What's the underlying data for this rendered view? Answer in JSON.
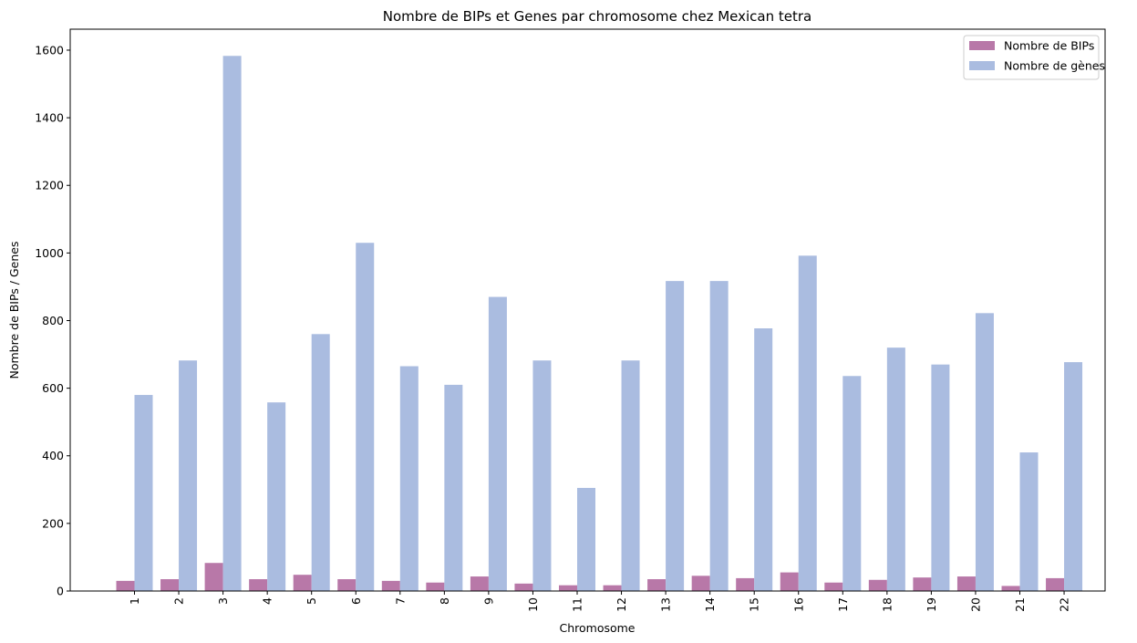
{
  "chart_data": {
    "type": "bar",
    "title": "Nombre de BIPs et Genes par chromosome chez Mexican tetra",
    "xlabel": "Chromosome",
    "ylabel": "Nombre de BIPs / Genes",
    "categories": [
      "1",
      "2",
      "3",
      "4",
      "5",
      "6",
      "7",
      "8",
      "9",
      "10",
      "11",
      "12",
      "13",
      "14",
      "15",
      "16",
      "17",
      "18",
      "19",
      "20",
      "21",
      "22"
    ],
    "series": [
      {
        "name": "Nombre de BIPs",
        "color": "#b878a8",
        "values": [
          30,
          35,
          83,
          35,
          48,
          35,
          30,
          25,
          43,
          22,
          17,
          17,
          35,
          45,
          38,
          55,
          25,
          33,
          40,
          43,
          15,
          38
        ]
      },
      {
        "name": "Nombre de gènes",
        "color": "#aabce0",
        "values": [
          580,
          682,
          1583,
          558,
          760,
          1030,
          665,
          610,
          870,
          682,
          305,
          682,
          917,
          917,
          777,
          992,
          636,
          720,
          670,
          822,
          410,
          677
        ]
      }
    ],
    "yticks": [
      0,
      200,
      400,
      600,
      800,
      1000,
      1200,
      1400,
      1600
    ],
    "ylim": [
      0,
      1662
    ],
    "grid": false,
    "legend_position": "top-right"
  }
}
